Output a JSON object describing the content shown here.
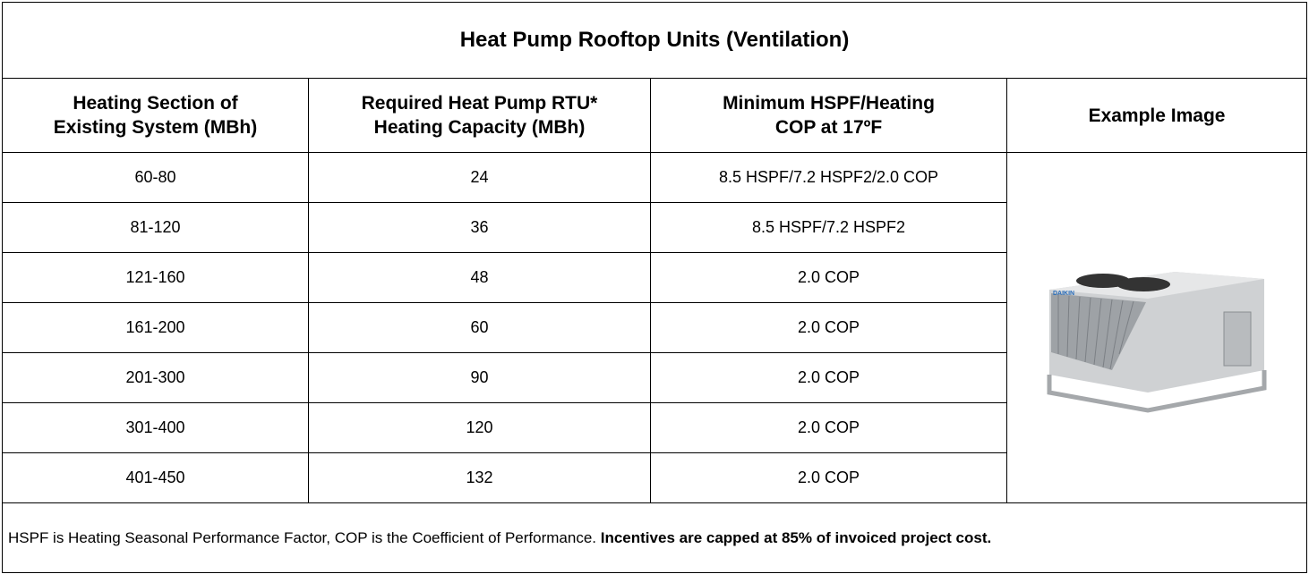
{
  "header": {
    "title": "Heat Pump Rooftop Units (Ventilation)"
  },
  "table": {
    "columns": [
      [
        "Heating Section of",
        "Existing System (MBh)"
      ],
      [
        "Required Heat Pump RTU*",
        "Heating Capacity (MBh)"
      ],
      [
        "Minimum HSPF/Heating",
        "COP at 17ºF"
      ],
      [
        "Example Image"
      ]
    ],
    "rows": [
      [
        "60-80",
        24,
        "8.5 HSPF/7.2 HSPF2/2.0 COP"
      ],
      [
        "81-120",
        36,
        "8.5 HSPF/7.2 HSPF2"
      ],
      [
        "121-160",
        48,
        "2.0 COP"
      ],
      [
        "161-200",
        60,
        "2.0 COP"
      ],
      [
        "201-300",
        90,
        "2.0 COP"
      ],
      [
        "301-400",
        120,
        "2.0 COP"
      ],
      [
        "401-450",
        132,
        "2.0 COP"
      ]
    ],
    "image_logo": "DAIKIN"
  },
  "footer": {
    "text": "HSPF is Heating Seasonal Performance Factor, COP is the Coefficient of Performance.",
    "bold": "Incentives are capped at 85% of invoiced project cost."
  }
}
